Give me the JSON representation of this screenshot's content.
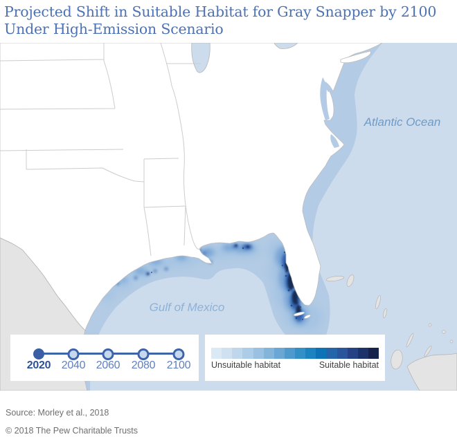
{
  "title": {
    "line1": "Projected Shift in Suitable Habitat for Gray Snapper by 2100",
    "line2": "Under High-Emission Scenario"
  },
  "map": {
    "labels": {
      "atlantic": "Atlantic Ocean",
      "gulf": "Gulf of Mexico"
    },
    "colors": {
      "ocean": "#cddcec",
      "shelf": "#b3cbe4",
      "us_land": "#ffffff",
      "foreign_land": "#e4e4e4",
      "state_border": "#c9c9c9",
      "coast_border": "#bdbdbd",
      "habitat_light": "#a5c4e3",
      "habitat_medium": "#6f9fd3",
      "habitat_dark": "#2e5dab",
      "habitat_darkest": "#16294f",
      "atlantic_label": "#6d9bc8",
      "gulf_label": "#8db2d8"
    }
  },
  "timeline": {
    "years": [
      {
        "label": "2020",
        "selected": true
      },
      {
        "label": "2040",
        "selected": false
      },
      {
        "label": "2060",
        "selected": false
      },
      {
        "label": "2080",
        "selected": false
      },
      {
        "label": "2100",
        "selected": false
      }
    ],
    "selected_color": "#3a5fa5",
    "track_color": "#3d63a8"
  },
  "legend": {
    "left_label": "Unsuitable habitat",
    "right_label": "Suitable habitat",
    "gradient_colors": [
      "#dbe9f5",
      "#cfe0f0",
      "#bfd6ec",
      "#adcce7",
      "#9ac1e1",
      "#83b4da",
      "#6aa7d4",
      "#4f9acd",
      "#3390c7",
      "#1a83c0",
      "#0d73b6",
      "#2464a9",
      "#2a549c",
      "#254285",
      "#1d326b",
      "#16244d"
    ]
  },
  "footer": {
    "source": "Source: Morley et al., 2018",
    "copyright": "© 2018 The Pew Charitable Trusts"
  },
  "accent": "#4d72b4"
}
